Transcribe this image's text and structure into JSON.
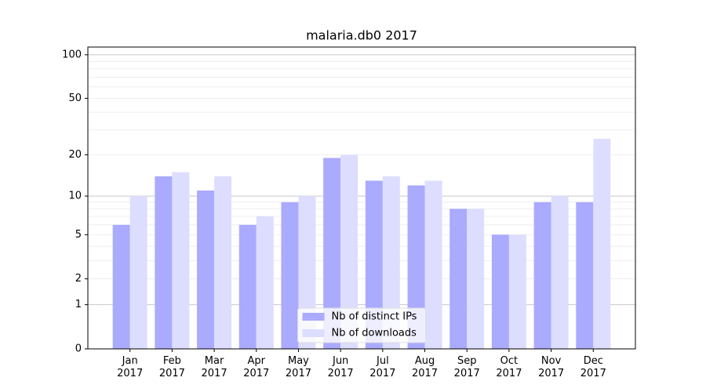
{
  "chart_data": {
    "type": "bar",
    "title": "malaria.db0 2017",
    "categories": [
      "Jan\n2017",
      "Feb\n2017",
      "Mar\n2017",
      "Apr\n2017",
      "May\n2017",
      "Jun\n2017",
      "Jul\n2017",
      "Aug\n2017",
      "Sep\n2017",
      "Oct\n2017",
      "Nov\n2017",
      "Dec\n2017"
    ],
    "series": [
      {
        "name": "Nb of distinct IPs",
        "color": "#aaaaff",
        "values": [
          6,
          14,
          11,
          6,
          9,
          19,
          13,
          12,
          8,
          5,
          9,
          9
        ]
      },
      {
        "name": "Nb of downloads",
        "color": "#ddddff",
        "values": [
          10,
          15,
          14,
          7,
          10,
          20,
          14,
          13,
          8,
          5,
          10,
          26
        ]
      }
    ],
    "yscale": "log1p",
    "ylim": [
      0,
      113
    ],
    "yticks": [
      0,
      1,
      2,
      5,
      10,
      20,
      50,
      100
    ],
    "yminor_ticks": [
      2,
      3,
      4,
      5,
      6,
      7,
      8,
      9,
      20,
      30,
      40,
      50,
      60,
      70,
      80,
      90
    ],
    "grid": true,
    "legend": "lower center"
  }
}
